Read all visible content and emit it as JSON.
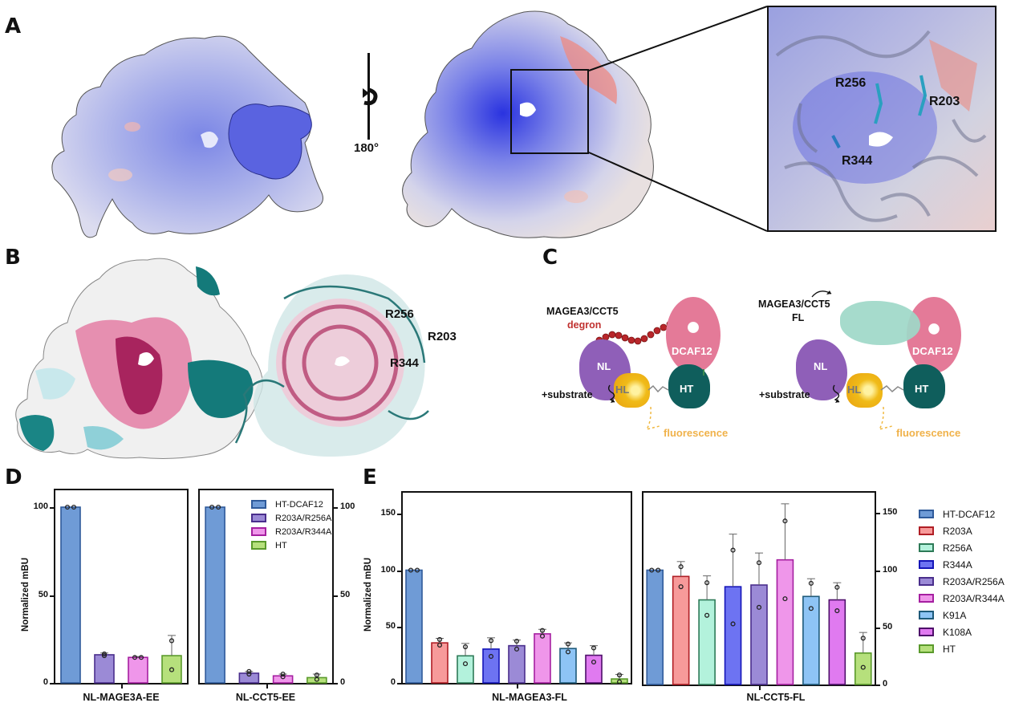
{
  "panels": {
    "A": {
      "letter": "A",
      "rotation_label": "180°",
      "residues": [
        "R256",
        "R203",
        "R344"
      ]
    },
    "B": {
      "letter": "B",
      "residues": [
        "R256",
        "R203",
        "R344"
      ]
    },
    "C": {
      "letter": "C",
      "left": {
        "substrate_label": "MAGEA3/CCT5",
        "substrate_sub": "degron",
        "nl": "NL",
        "dcaf": "DCAF12",
        "hl": "HL",
        "ht": "HT",
        "plus_substrate": "+substrate",
        "fluorescence": "fluorescence"
      },
      "right": {
        "substrate_label": "MAGEA3/CCT5",
        "substrate_sub": "FL",
        "nl": "NL",
        "dcaf": "DCAF12",
        "hl": "HL",
        "ht": "HT",
        "plus_substrate": "+substrate",
        "fluorescence": "fluorescence"
      }
    },
    "D": {
      "letter": "D"
    },
    "E": {
      "letter": "E"
    }
  },
  "colors": {
    "HT-DCAF12": {
      "fill": "#6f9bd6",
      "stroke": "#2f5a9a"
    },
    "R203A": {
      "fill": "#f79a9a",
      "stroke": "#b01e25"
    },
    "R256A": {
      "fill": "#b3f2dc",
      "stroke": "#2d7a57"
    },
    "R344A": {
      "fill": "#6d73f2",
      "stroke": "#1515b8"
    },
    "R203A/R256A": {
      "fill": "#9b8ad6",
      "stroke": "#4a2e8c"
    },
    "R203A/R344A": {
      "fill": "#ef96ea",
      "stroke": "#a51fa0"
    },
    "K91A": {
      "fill": "#8ec4f5",
      "stroke": "#1e5a7a"
    },
    "K108A": {
      "fill": "#e07af0",
      "stroke": "#4e0f6a"
    },
    "HT": {
      "fill": "#b6e07c",
      "stroke": "#5a9a2b"
    }
  },
  "chart_data": [
    {
      "id": "D-left",
      "type": "bar",
      "title": "",
      "xlabel": "NL-MAGE3A-EE",
      "ylabel": "Normalized mBU",
      "ylim": [
        0,
        110
      ],
      "yticks": [
        0,
        50,
        100
      ],
      "categories": [
        "HT-DCAF12",
        "R203A/R256A",
        "R203A/R344A",
        "HT"
      ],
      "values": [
        100,
        16,
        14.5,
        15.5
      ],
      "errors": [
        0,
        1,
        0.5,
        11.5
      ],
      "points": [
        [
          100,
          100
        ],
        [
          15.5,
          16.5
        ],
        [
          14.5,
          14.5
        ],
        [
          24,
          7.5
        ]
      ]
    },
    {
      "id": "D-right",
      "type": "bar",
      "title": "",
      "xlabel": "NL-CCT5-EE",
      "ylabel": "",
      "ylim": [
        0,
        110
      ],
      "yticks": [
        0,
        50,
        100
      ],
      "categories": [
        "HT-DCAF12",
        "R203A/R256A",
        "R203A/R344A",
        "HT"
      ],
      "values": [
        100,
        5.5,
        4,
        3
      ],
      "errors": [
        0,
        1,
        1,
        2
      ],
      "points": [
        [
          100,
          100
        ],
        [
          5,
          6.5
        ],
        [
          3.5,
          5
        ],
        [
          4.5,
          2
        ]
      ],
      "legend": [
        "HT-DCAF12",
        "R203A/R256A",
        "R203A/R344A",
        "HT"
      ],
      "legend_position": "upper right inside"
    },
    {
      "id": "E-left",
      "type": "bar",
      "title": "",
      "xlabel": "NL-MAGEA3-FL",
      "ylabel": "Normalized mBU",
      "ylim": [
        0,
        170
      ],
      "yticks": [
        0,
        50,
        100,
        150
      ],
      "categories": [
        "HT-DCAF12",
        "R203A",
        "R256A",
        "R344A",
        "R203A/R256A",
        "R203A/R344A",
        "K91A",
        "K108A",
        "HT"
      ],
      "values": [
        100,
        35.5,
        24,
        30,
        33,
        43.5,
        30.5,
        24.5,
        3.5
      ],
      "errors": [
        0,
        4,
        11,
        10,
        5,
        4,
        5,
        8.5,
        4
      ],
      "points": [
        [
          100,
          100
        ],
        [
          38.5,
          33.5
        ],
        [
          32,
          17
        ],
        [
          37.5,
          23.5
        ],
        [
          37,
          30
        ],
        [
          46.5,
          41.5
        ],
        [
          34.5,
          27.5
        ],
        [
          31,
          18.5
        ],
        [
          7,
          1
        ]
      ]
    },
    {
      "id": "E-right",
      "type": "bar",
      "title": "",
      "xlabel": "NL-CCT5-FL",
      "ylabel": "",
      "ylim": [
        0,
        170
      ],
      "yticks": [
        0,
        50,
        100,
        150
      ],
      "categories": [
        "HT-DCAF12",
        "R203A",
        "R256A",
        "R344A",
        "R203A/R256A",
        "R203A/R344A",
        "K91A",
        "K108A",
        "HT"
      ],
      "values": [
        100,
        94.5,
        74,
        85.5,
        87,
        109,
        77,
        74,
        27.5
      ],
      "errors": [
        0,
        13,
        21,
        46,
        28,
        49,
        15.5,
        15,
        18
      ],
      "points": [
        [
          100,
          100
        ],
        [
          103,
          85.5
        ],
        [
          89,
          60.5
        ],
        [
          117.5,
          53
        ],
        [
          106.5,
          67.5
        ],
        [
          143,
          75
        ],
        [
          88.5,
          66.5
        ],
        [
          85,
          64.5
        ],
        [
          40.5,
          15
        ]
      ],
      "legend": [
        "HT-DCAF12",
        "R203A",
        "R256A",
        "R344A",
        "R203A/R256A",
        "R203A/R344A",
        "K91A",
        "K108A",
        "HT"
      ],
      "legend_position": "right outside"
    }
  ]
}
